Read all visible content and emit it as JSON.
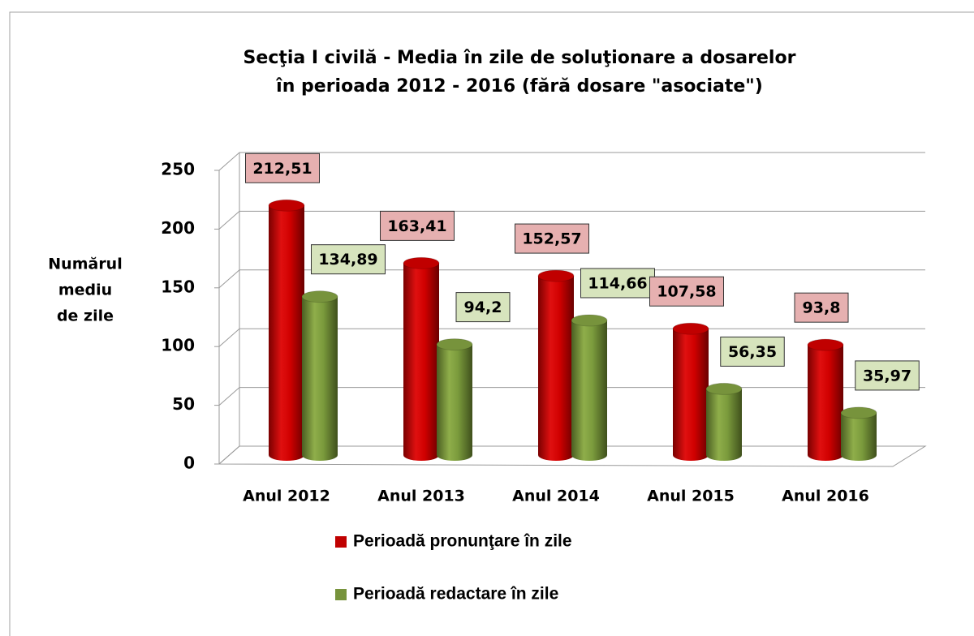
{
  "chart_data": {
    "type": "bar",
    "title": [
      "Secţia I civilă - Media în zile de soluţionare a dosarelor",
      "în perioada 2012 - 2016 (fără dosare \"asociate\")"
    ],
    "y_label": [
      "Numărul",
      "mediu",
      "de zile"
    ],
    "categories": [
      "Anul 2012",
      "Anul 2013",
      "Anul 2014",
      "Anul 2015",
      "Anul 2016"
    ],
    "series": [
      {
        "name": "Perioadă pronunţare în zile",
        "color": "#c00000",
        "label_color": "#e6b0b0",
        "values": [
          212.51,
          163.41,
          152.57,
          107.58,
          93.8
        ],
        "value_labels": [
          "212,51",
          "163,41",
          "152,57",
          "107,58",
          "93,8"
        ]
      },
      {
        "name": "Perioadă redactare în zile",
        "color": "#77933c",
        "label_color": "#d7e4bd",
        "values": [
          134.89,
          94.2,
          114.66,
          56.35,
          35.97
        ],
        "value_labels": [
          "134,89",
          "94,2",
          "114,66",
          "56,35",
          "35,97"
        ]
      }
    ],
    "ylim": [
      0,
      250
    ],
    "yticks": [
      0,
      50,
      100,
      150,
      200,
      250
    ],
    "grid": true
  }
}
